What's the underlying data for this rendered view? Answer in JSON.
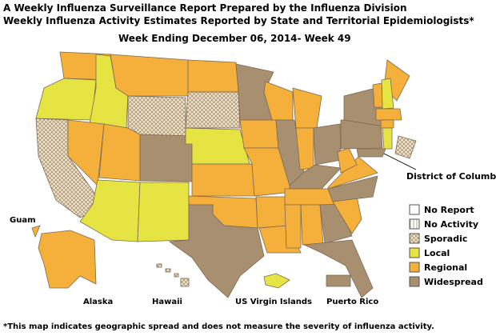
{
  "header": {
    "title": "A Weekly Influenza Surveillance Report Prepared by the Influenza Division",
    "subtitle": "Weekly Influenza Activity Estimates Reported by State and Territorial Epidemiologists*",
    "week": "Week Ending December 06, 2014- Week 49"
  },
  "legend": {
    "items": [
      "No Report",
      "No Activity",
      "Sporadic",
      "Local",
      "Regional",
      "Widespread"
    ]
  },
  "labels": {
    "dc": "District of Columbia",
    "guam": "Guam",
    "alaska": "Alaska",
    "hawaii": "Hawaii",
    "usvi": "US Virgin Islands",
    "pr": "Puerto Rico"
  },
  "footnote": "*This map indicates geographic spread and does not measure the severity of influenza activity."
}
